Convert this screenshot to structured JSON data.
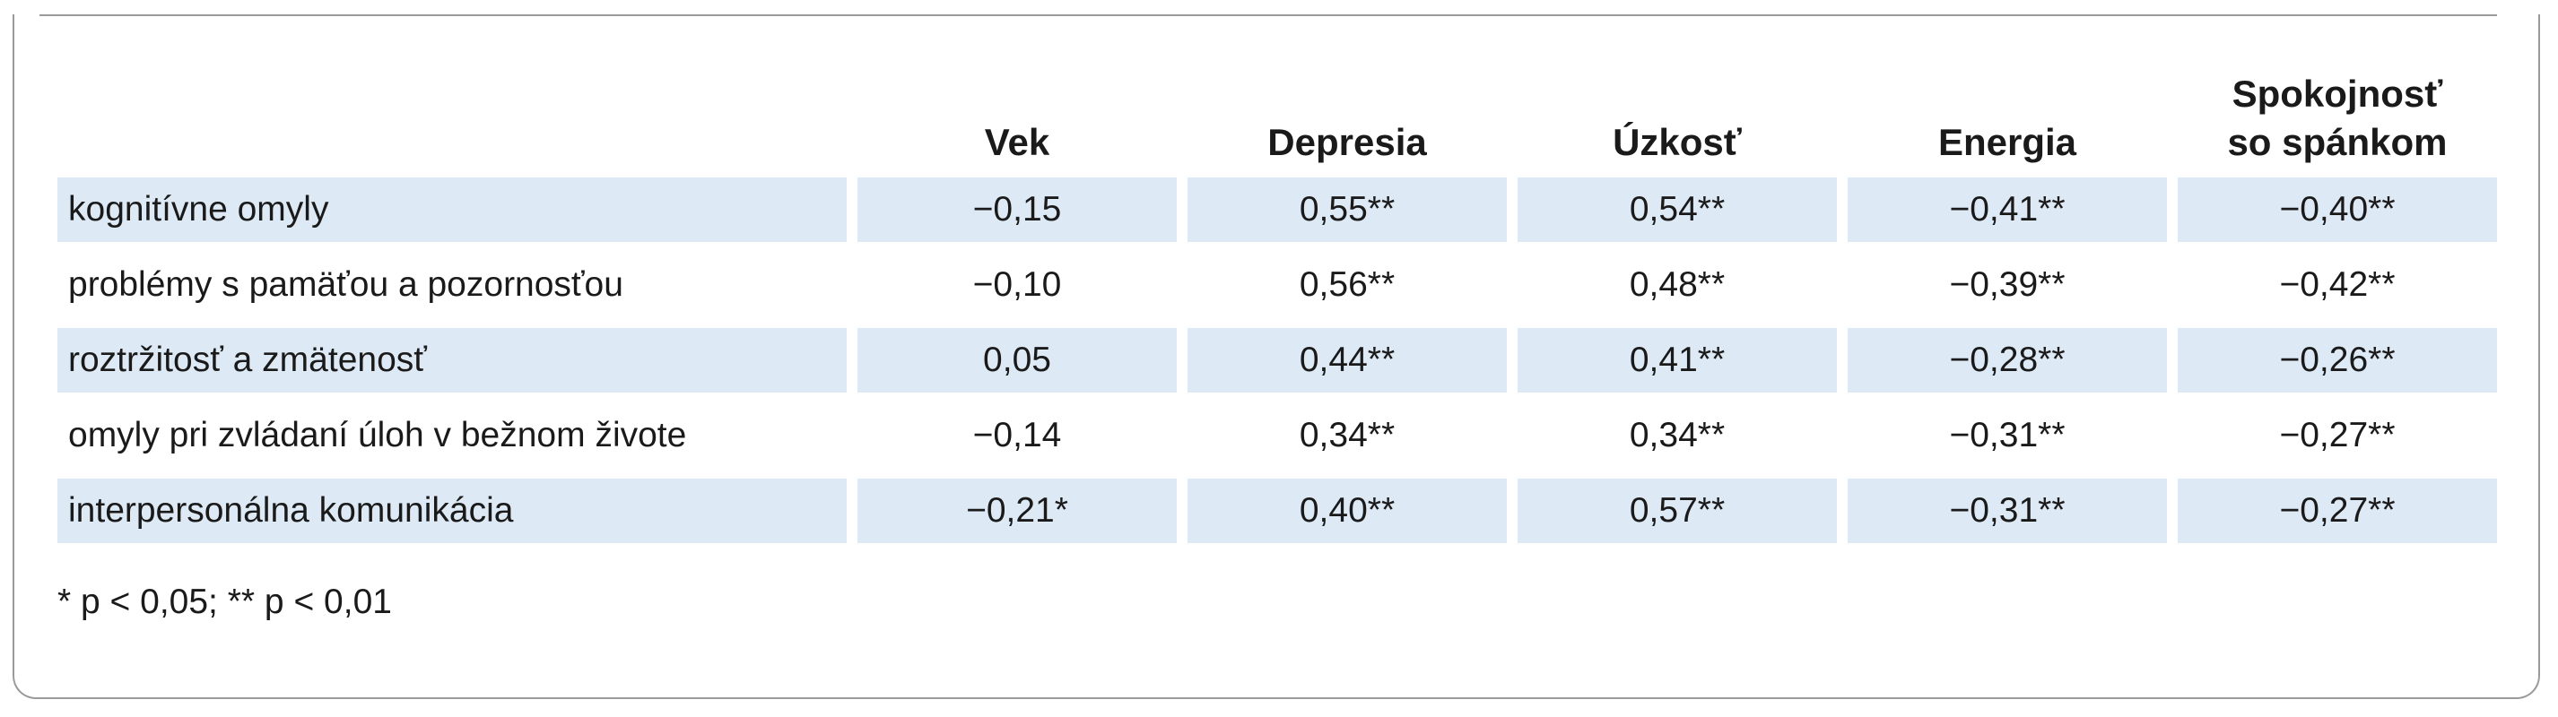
{
  "table": {
    "headers": [
      "Vek",
      "Depresia",
      "Úzkosť",
      "Energia",
      "Spokojnosť so spánkom"
    ],
    "header_last_line1": "Spokojnosť",
    "header_last_line2": "so spánkom",
    "rows": [
      {
        "label": "kognitívne omyly",
        "values": [
          "−0,15",
          "0,55**",
          "0,54**",
          "−0,41**",
          "−0,40**"
        ]
      },
      {
        "label": "problémy s pamäťou a pozornosťou",
        "values": [
          "−0,10",
          "0,56**",
          "0,48**",
          "−0,39**",
          "−0,42**"
        ]
      },
      {
        "label": "roztržitosť a zmätenosť",
        "values": [
          "0,05",
          "0,44**",
          "0,41**",
          "−0,28**",
          "−0,26**"
        ]
      },
      {
        "label": "omyly pri zvládaní úloh v bežnom živote",
        "values": [
          "−0,14",
          "0,34**",
          "0,34**",
          "−0,31**",
          "−0,27**"
        ]
      },
      {
        "label": "interpersonálna komunikácia",
        "values": [
          "−0,21*",
          "0,40**",
          "0,57**",
          "−0,31**",
          "−0,27**"
        ]
      }
    ],
    "footnote": "* p < 0,05; ** p < 0,01",
    "row_fill_color": "#dde9f5",
    "border_color": "#9a9a9a"
  }
}
